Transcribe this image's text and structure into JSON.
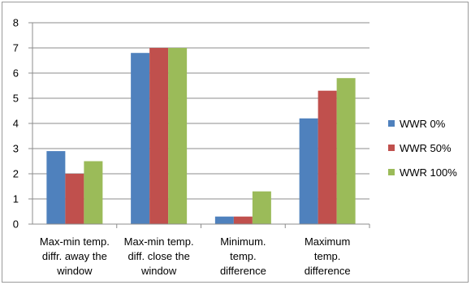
{
  "chart_data": {
    "type": "bar",
    "categories": [
      [
        "Max-min temp.",
        "diffr. away the",
        "window"
      ],
      [
        "Max-min temp.",
        "diff. close the",
        "window"
      ],
      [
        "Minimum.",
        "temp.",
        "difference"
      ],
      [
        "Maximum",
        "temp.",
        "difference"
      ]
    ],
    "series": [
      {
        "name": "WWR 0%",
        "color": "#4f81bd",
        "values": [
          2.9,
          6.8,
          0.3,
          4.2
        ]
      },
      {
        "name": "WWR 50%",
        "color": "#c0504d",
        "values": [
          2.0,
          7.0,
          0.3,
          5.3
        ]
      },
      {
        "name": "WWR 100%",
        "color": "#9bbb59",
        "values": [
          2.5,
          7.0,
          1.3,
          5.8
        ]
      }
    ],
    "title": "",
    "xlabel": "",
    "ylabel": "",
    "ylim": [
      0,
      8
    ],
    "yticks": [
      "0",
      "1",
      "2",
      "3",
      "4",
      "5",
      "6",
      "7",
      "8"
    ],
    "grid": true,
    "legend_position": "right"
  }
}
